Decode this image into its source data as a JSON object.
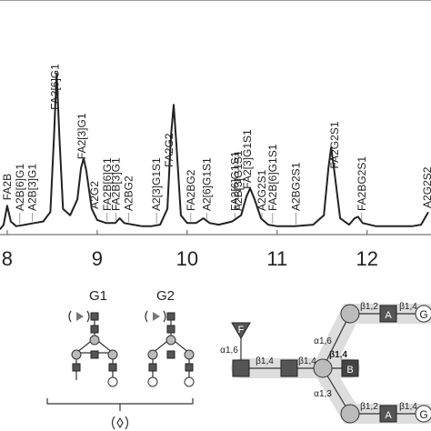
{
  "chart_data": {
    "type": "line",
    "x": [
      7.92,
      7.96,
      8.0,
      8.04,
      8.1,
      8.2,
      8.3,
      8.4,
      8.48,
      8.52,
      8.55,
      8.58,
      8.62,
      8.7,
      8.78,
      8.82,
      8.85,
      8.88,
      8.94,
      9.0,
      9.1,
      9.2,
      9.25,
      9.3,
      9.4,
      9.5,
      9.6,
      9.7,
      9.78,
      9.82,
      9.85,
      9.88,
      9.93,
      10.0,
      10.1,
      10.18,
      10.25,
      10.35,
      10.5,
      10.6,
      10.66,
      10.7,
      10.75,
      10.82,
      10.9,
      11.0,
      11.2,
      11.4,
      11.52,
      11.57,
      11.6,
      11.64,
      11.7,
      11.8,
      11.86,
      11.9,
      11.95,
      12.1,
      12.3,
      12.5,
      12.6,
      12.68
    ],
    "values": [
      1,
      4,
      16,
      6,
      3,
      4,
      5,
      6,
      12,
      60,
      100,
      60,
      14,
      10,
      20,
      40,
      46,
      38,
      14,
      7,
      5,
      5,
      8,
      5,
      4,
      3,
      3,
      4,
      14,
      60,
      80,
      55,
      10,
      5,
      5,
      8,
      5,
      4,
      6,
      10,
      22,
      27,
      20,
      8,
      4,
      3,
      3,
      4,
      10,
      40,
      53,
      36,
      8,
      4,
      8,
      9,
      5,
      3,
      3,
      3,
      4,
      12
    ],
    "color": "#222222",
    "xlim": [
      7.92,
      12.71
    ],
    "xticks": [
      8,
      9,
      10,
      11,
      12
    ],
    "ylim": [
      0,
      105
    ],
    "annotations": [
      {
        "text": "FA2B",
        "x": 8.0
      },
      {
        "text": "A2B[6]G1",
        "x": 8.14
      },
      {
        "text": "A2B[3]G1",
        "x": 8.28
      },
      {
        "text": "FA2[6]G1",
        "x": 8.53
      },
      {
        "text": "FA2[3]G1",
        "x": 8.83
      },
      {
        "text": "A2G2",
        "x": 8.97
      },
      {
        "text": "FA2B[6]G1",
        "x": 9.11
      },
      {
        "text": "FA2B[3]G1",
        "x": 9.21
      },
      {
        "text": "A2BG2",
        "x": 9.35
      },
      {
        "text": "A2[3]G1S1",
        "x": 9.66
      },
      {
        "text": "FA2G2",
        "x": 9.8
      },
      {
        "text": "FA2BG2",
        "x": 10.04
      },
      {
        "text": "A2[6]G1S1",
        "x": 10.22
      },
      {
        "text": "FA2[6]G1S1",
        "x": 10.53
      },
      {
        "text": "A2B[3]G1S1",
        "x": 10.57
      },
      {
        "text": "FA2[3]G1S1",
        "x": 10.67
      },
      {
        "text": "A2G2S1",
        "x": 10.83
      },
      {
        "text": "FA2B[6]G1S1",
        "x": 10.95
      },
      {
        "text": "A2BG2S1",
        "x": 11.21
      },
      {
        "text": "FA2G2S1",
        "x": 11.64
      },
      {
        "text": "FA2BG2S1",
        "x": 11.94
      },
      {
        "text": "A2G2S2",
        "x": 12.67
      }
    ]
  },
  "diagram": {
    "g1": "G1",
    "g2": "G2",
    "structure": {
      "fucose": "F",
      "antenna": [
        "A",
        "A"
      ],
      "bisect": "B",
      "galactose": [
        "G",
        "G"
      ],
      "linkages": [
        "α1,6",
        "β1,4",
        "β1,4",
        "β1,4",
        "α1,6",
        "α1,3",
        "β1,2",
        "β1,2",
        "β1,4",
        "β1,4"
      ]
    }
  }
}
